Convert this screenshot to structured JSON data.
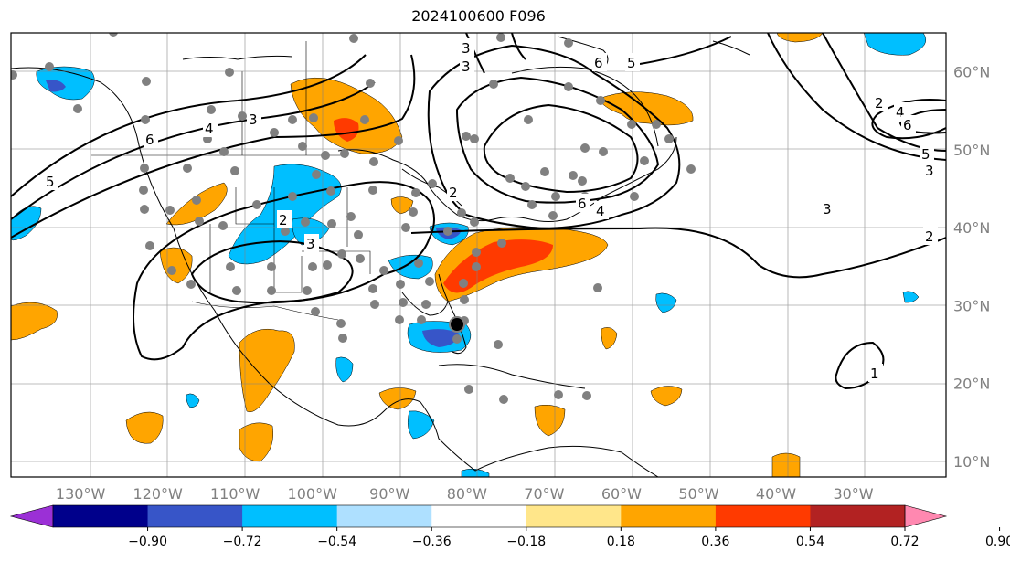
{
  "title": "2024100600 F096",
  "map": {
    "lon_labels": [
      "130°W",
      "120°W",
      "110°W",
      "100°W",
      "90°W",
      "80°W",
      "70°W",
      "60°W",
      "50°W",
      "40°W",
      "30°W"
    ],
    "lon_values": [
      -130,
      -120,
      -110,
      -100,
      -90,
      -80,
      -70,
      -60,
      -50,
      -40,
      -30
    ],
    "lat_labels": [
      "60°N",
      "50°N",
      "40°N",
      "30°N",
      "20°N",
      "10°N"
    ],
    "lat_values": [
      60,
      50,
      40,
      30,
      20,
      10
    ],
    "lon_range": [
      -139,
      -18
    ],
    "lat_range": [
      8,
      65
    ],
    "contour_labels": [
      "5",
      "6",
      "4",
      "3",
      "2",
      "3",
      "6",
      "5",
      "3",
      "2",
      "6",
      "4",
      "5",
      "3",
      "3",
      "2",
      "1",
      "3",
      "2",
      "4",
      "6"
    ],
    "gridlines": true
  },
  "colorbar": {
    "ticks": [
      "−0.90",
      "−0.72",
      "−0.54",
      "−0.36",
      "−0.18",
      "0.18",
      "0.36",
      "0.54",
      "0.72",
      "0.90"
    ],
    "colors": [
      "#9b30d6",
      "#00008b",
      "#3755c8",
      "#00bfff",
      "#aee0ff",
      "#ffffff",
      "#ffe68a",
      "#ffa500",
      "#ff3a00",
      "#b22222",
      "#ff88b0"
    ],
    "extend": "both"
  },
  "colors": {
    "orange": "#ffa500",
    "red": "#ff3a00",
    "light_blue": "#00bfff",
    "blue": "#3755c8",
    "dot": "#808080"
  }
}
